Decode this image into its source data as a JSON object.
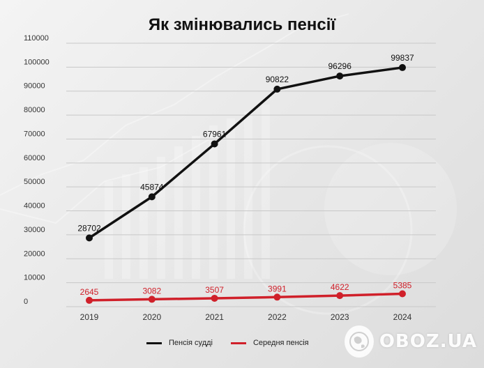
{
  "title": "Як змінювались пенсії",
  "logo_text": "OBOZ.UA",
  "chart_data": {
    "type": "line",
    "categories": [
      "2019",
      "2020",
      "2021",
      "2022",
      "2023",
      "2024"
    ],
    "series": [
      {
        "name": "Пенсія судді",
        "color": "#111111",
        "values": [
          28702,
          45874,
          67961,
          90822,
          96296,
          99837
        ]
      },
      {
        "name": "Середня пенсія",
        "color": "#d0202a",
        "values": [
          2645,
          3082,
          3507,
          3991,
          4622,
          5385
        ]
      }
    ],
    "y_ticks": [
      "0",
      "10000",
      "20000",
      "30000",
      "40000",
      "50000",
      "60000",
      "70000",
      "80000",
      "90000",
      "100000",
      "110000"
    ],
    "ylim": [
      0,
      110000
    ],
    "grid": true,
    "legend_position": "bottom"
  }
}
